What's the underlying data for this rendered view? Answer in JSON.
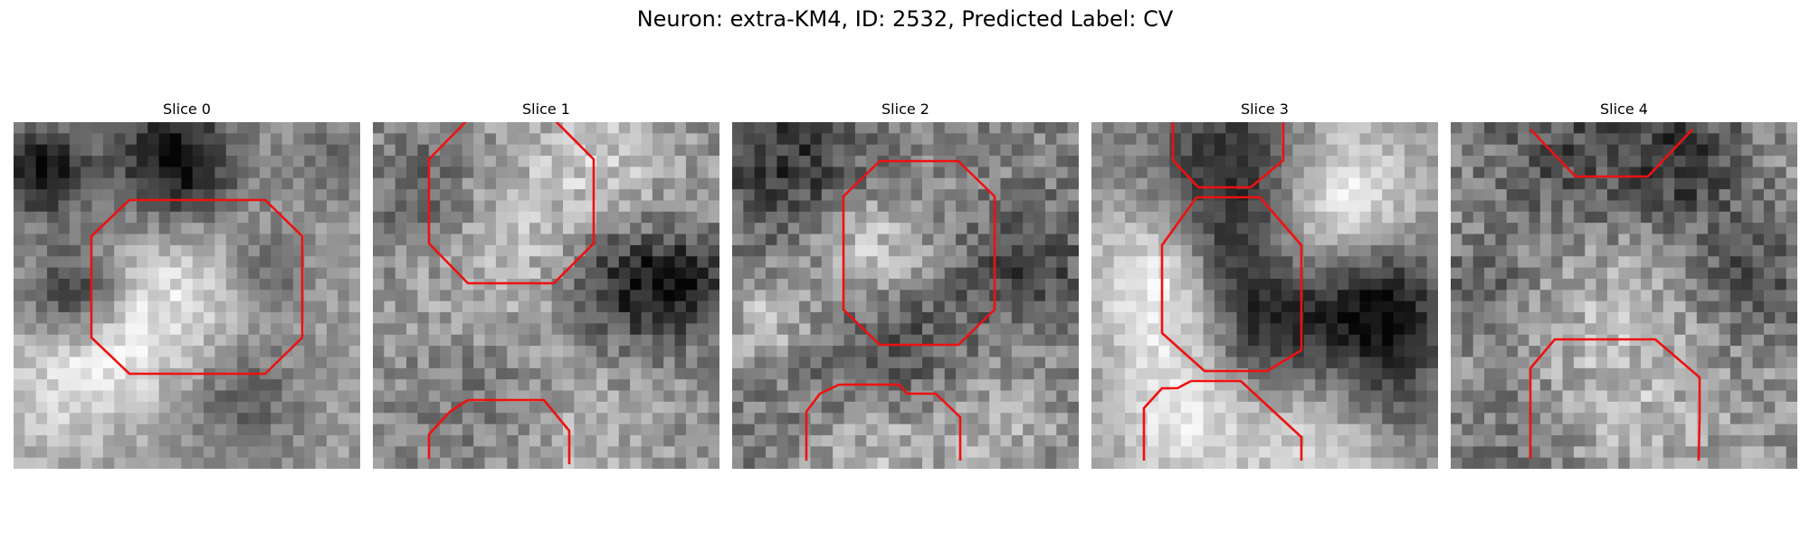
{
  "figure": {
    "title": "Neuron: extra-KM4, ID: 2532, Predicted Label: CV",
    "contour_color": "#ee1111",
    "panels": [
      {
        "title": "Slice 0"
      },
      {
        "title": "Slice 1"
      },
      {
        "title": "Slice 2"
      },
      {
        "title": "Slice 3"
      },
      {
        "title": "Slice 4"
      }
    ]
  }
}
